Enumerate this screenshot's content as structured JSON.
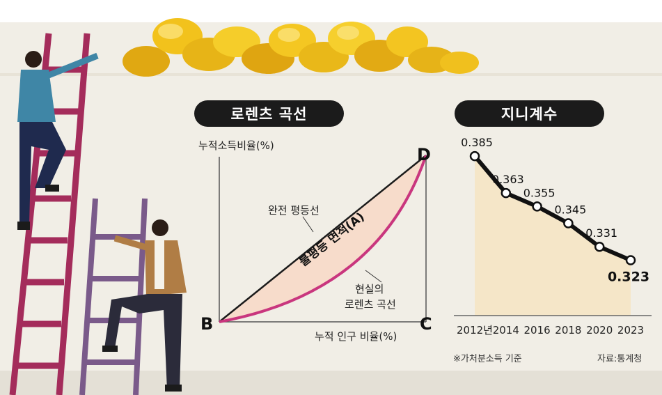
{
  "lorenz": {
    "title": "로렌츠 곡선",
    "y_axis_label": "누적소득비율(%)",
    "x_axis_label": "누적 인구 비율(%)",
    "equality_line_label": "완전 평등선",
    "inequality_area_label": "불평등 면적(A)",
    "real_curve_label_line1": "현실의",
    "real_curve_label_line2": "로렌츠 곡선",
    "point_b": "B",
    "point_c": "C",
    "point_d": "D"
  },
  "gini": {
    "title": "지니계수",
    "footnote": "※가처분소득 기준",
    "source": "자료:통계청"
  },
  "colors": {
    "line": "#111111",
    "area": "#f5e6c8",
    "lorenz_curve": "#c9367e",
    "lorenz_fill": "#f7dccb"
  },
  "chart_data": [
    {
      "type": "line",
      "title": "지니계수",
      "x": [
        "2012년",
        "2014",
        "2016",
        "2018",
        "2020",
        "2023"
      ],
      "series": [
        {
          "values": [
            0.385,
            0.363,
            0.355,
            0.345,
            0.331,
            0.323
          ]
        }
      ],
      "data_labels": [
        "0.385",
        "0.363",
        "0.355",
        "0.345",
        "0.331",
        "0.323"
      ],
      "ylim": [
        0.29,
        0.395
      ],
      "grid": false
    }
  ]
}
